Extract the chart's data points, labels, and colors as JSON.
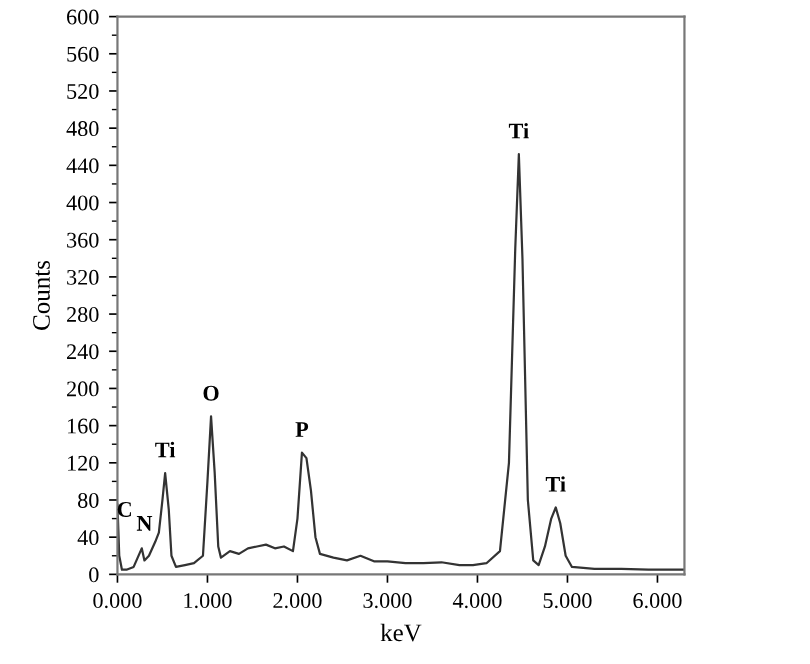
{
  "chart_data": {
    "type": "line",
    "xlabel": "keV",
    "ylabel": "Counts",
    "x": [
      0.0,
      0.02,
      0.05,
      0.1,
      0.18,
      0.27,
      0.3,
      0.35,
      0.42,
      0.46,
      0.5,
      0.53,
      0.57,
      0.6,
      0.65,
      0.75,
      0.85,
      0.95,
      1.0,
      1.04,
      1.08,
      1.12,
      1.15,
      1.25,
      1.35,
      1.45,
      1.55,
      1.65,
      1.75,
      1.85,
      1.95,
      2.0,
      2.05,
      2.1,
      2.15,
      2.2,
      2.25,
      2.4,
      2.55,
      2.7,
      2.85,
      3.0,
      3.2,
      3.4,
      3.6,
      3.8,
      3.95,
      4.1,
      4.25,
      4.35,
      4.42,
      4.46,
      4.5,
      4.56,
      4.62,
      4.68,
      4.75,
      4.82,
      4.87,
      4.92,
      4.98,
      5.05,
      5.3,
      5.6,
      5.9,
      6.2,
      6.3
    ],
    "series": [
      {
        "color": "#333333",
        "values": [
          75,
          20,
          5,
          5,
          8,
          28,
          15,
          20,
          35,
          45,
          80,
          109,
          70,
          20,
          8,
          10,
          12,
          20,
          100,
          170,
          110,
          30,
          18,
          25,
          22,
          28,
          30,
          32,
          28,
          30,
          25,
          60,
          131,
          125,
          90,
          40,
          22,
          18,
          15,
          20,
          14,
          14,
          12,
          12,
          13,
          10,
          10,
          12,
          25,
          120,
          350,
          452,
          340,
          80,
          15,
          10,
          30,
          60,
          72,
          55,
          20,
          8,
          6,
          6,
          5,
          5,
          5
        ]
      }
    ],
    "xlim": [
      0,
      6.3
    ],
    "ylim": [
      0,
      600
    ],
    "xticks": [
      {
        "value": 0,
        "label": "0.000"
      },
      {
        "value": 1,
        "label": "1.000"
      },
      {
        "value": 2,
        "label": "2.000"
      },
      {
        "value": 3,
        "label": "3.000"
      },
      {
        "value": 4,
        "label": "4.000"
      },
      {
        "value": 5,
        "label": "5.000"
      },
      {
        "value": 6,
        "label": "6.000"
      }
    ],
    "yticks": [
      0,
      40,
      80,
      120,
      160,
      200,
      240,
      280,
      320,
      360,
      400,
      440,
      480,
      520,
      560,
      600
    ],
    "marker": "none",
    "line_style": "solid",
    "grid": false,
    "legend": false,
    "annotations": [
      {
        "text": "C",
        "x": 0.08,
        "y": 45
      },
      {
        "text": "N",
        "x": 0.3,
        "y": 30
      },
      {
        "text": "Ti",
        "x": 0.53,
        "y": 109
      },
      {
        "text": "O",
        "x": 1.04,
        "y": 170
      },
      {
        "text": "P",
        "x": 2.05,
        "y": 131
      },
      {
        "text": "Ti",
        "x": 4.46,
        "y": 452
      },
      {
        "text": "Ti",
        "x": 4.87,
        "y": 72
      }
    ]
  }
}
